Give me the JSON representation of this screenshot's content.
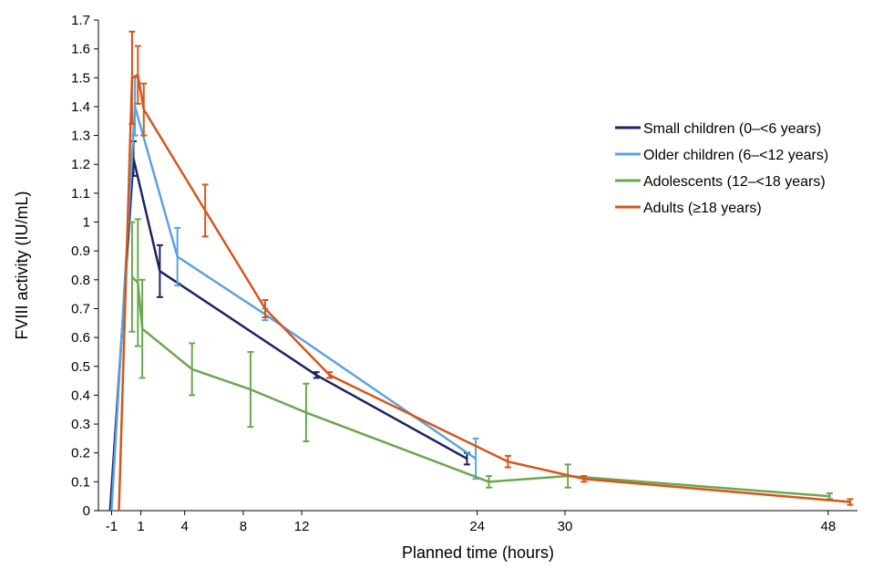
{
  "chart_data": {
    "type": "line",
    "title": "",
    "xlabel": "Planned time (hours)",
    "ylabel": "FVIII activity (IU/mL)",
    "xlim": [
      -1.9,
      50
    ],
    "ylim": [
      0,
      1.7
    ],
    "x_ticks": [
      -1,
      1,
      4,
      8,
      12,
      24,
      30,
      48
    ],
    "x_tick_labels": [
      "-1",
      "1",
      "4",
      "8",
      "12",
      "24",
      "30",
      "48"
    ],
    "y_ticks": [
      0,
      0.1,
      0.2,
      0.3,
      0.4,
      0.5,
      0.6,
      0.7,
      0.8,
      0.9,
      1,
      1.1,
      1.2,
      1.3,
      1.4,
      1.5,
      1.6,
      1.7
    ],
    "y_tick_labels": [
      "0",
      "0.1",
      "0.2",
      "0.3",
      "0.4",
      "0.5",
      "0.6",
      "0.7",
      "0.8",
      "0.9",
      "1",
      "1.1",
      "1.2",
      "1.3",
      "1.4",
      "1.5",
      "1.6",
      "1.7"
    ],
    "grid": false,
    "legend_position": "right",
    "series": [
      {
        "name": "Small children (0–<6 years)",
        "color": "#1b2463",
        "x": [
          -1.1,
          0.5,
          2.3,
          13.0,
          23.3
        ],
        "y": [
          0.0,
          1.22,
          0.83,
          0.47,
          0.18
        ],
        "err": [
          0.0,
          0.06,
          0.09,
          0.01,
          0.02
        ]
      },
      {
        "name": "Older children (6–<12 years)",
        "color": "#5ba3df",
        "x": [
          -1.0,
          0.6,
          3.5,
          9.5,
          23.9
        ],
        "y": [
          0.0,
          1.4,
          0.88,
          0.68,
          0.18
        ],
        "err": [
          0.0,
          0.1,
          0.1,
          0.02,
          0.07
        ]
      },
      {
        "name": "Adolescents (12–<18 years)",
        "color": "#6aa84f",
        "x": [
          0.4,
          0.8,
          1.1,
          4.5,
          8.5,
          12.3,
          24.8,
          30.2,
          48.1
        ],
        "y": [
          0.81,
          0.79,
          0.63,
          0.49,
          0.42,
          0.34,
          0.1,
          0.12,
          0.05
        ],
        "err": [
          0.19,
          0.22,
          0.17,
          0.09,
          0.13,
          0.1,
          0.02,
          0.04,
          0.01
        ]
      },
      {
        "name": "Adults (≥18 years)",
        "color": "#d5561b",
        "x": [
          -0.5,
          0.4,
          0.8,
          1.2,
          5.4,
          9.5,
          13.9,
          26.1,
          31.3,
          49.5
        ],
        "y": [
          0.0,
          1.5,
          1.51,
          1.39,
          1.04,
          0.7,
          0.47,
          0.17,
          0.11,
          0.03
        ],
        "err": [
          0.0,
          0.16,
          0.1,
          0.09,
          0.09,
          0.03,
          0.01,
          0.02,
          0.01,
          0.01
        ]
      }
    ]
  }
}
